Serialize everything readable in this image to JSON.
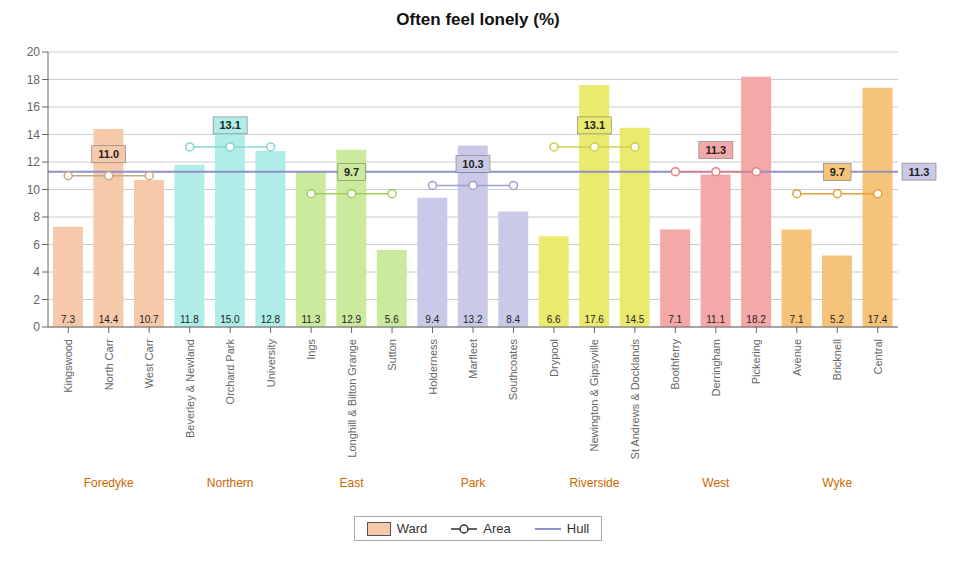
{
  "chart_data": {
    "type": "bar",
    "title": "Often feel lonely (%)",
    "categories": [
      "Kingswood",
      "North Carr",
      "West Carr",
      "Beverley & Newland",
      "Orchard Park",
      "University",
      "Ings",
      "Longhill & Bilton Grange",
      "Sutton",
      "Holderness",
      "Marfleet",
      "Southcoates",
      "Drypool",
      "Newington & Gipsyville",
      "St Andrews & Docklands",
      "Boothferry",
      "Derringham",
      "Pickering",
      "Avenue",
      "Bricknell",
      "Central"
    ],
    "ylim": [
      0,
      20
    ],
    "yticks": [
      0,
      2,
      4,
      6,
      8,
      10,
      12,
      14,
      16,
      18,
      20
    ],
    "grid": true,
    "legend": "bottom",
    "group_label_color": "#cc6600",
    "series": [
      {
        "name": "Ward",
        "type": "bar",
        "data_labels": true,
        "values": [
          7.3,
          14.4,
          10.7,
          11.8,
          15.0,
          12.8,
          11.3,
          12.9,
          5.6,
          9.4,
          13.2,
          8.4,
          6.6,
          17.6,
          14.5,
          7.1,
          11.1,
          18.2,
          7.1,
          5.2,
          17.4
        ],
        "value_labels": [
          "7.3",
          "14.4",
          "10.7",
          "11.8",
          "15.0",
          "12.8",
          "11.3",
          "12.9",
          "5.6",
          "9.4",
          "13.2",
          "8.4",
          "6.6",
          "17.6",
          "14.5",
          "7.1",
          "11.1",
          "18.2",
          "7.1",
          "5.2",
          "17.4"
        ],
        "colors": [
          "#f5c9aa",
          "#f5c9aa",
          "#f5c9aa",
          "#b0ede8",
          "#b0ede8",
          "#b0ede8",
          "#ccea9e",
          "#ccea9e",
          "#ccea9e",
          "#cacae8",
          "#cacae8",
          "#cacae8",
          "#eaea6e",
          "#eaea6e",
          "#eaea6e",
          "#f5a8a8",
          "#f5a8a8",
          "#f5a8a8",
          "#f5c47a",
          "#f5c47a",
          "#f5c47a"
        ]
      },
      {
        "name": "Area",
        "type": "line",
        "marker": "circle",
        "color": "#333333",
        "groups": [
          {
            "name": "Foredyke",
            "categories": [
              "Kingswood",
              "North Carr",
              "West Carr"
            ],
            "value": 11.0,
            "value_label": "11.0",
            "color": "#c8a882",
            "label_color": "#f5c9aa"
          },
          {
            "name": "Northern",
            "categories": [
              "Beverley & Newland",
              "Orchard Park",
              "University"
            ],
            "value": 13.1,
            "value_label": "13.1",
            "color": "#80d8d0",
            "label_color": "#b0ede8"
          },
          {
            "name": "East",
            "categories": [
              "Ings",
              "Longhill & Bilton Grange",
              "Sutton"
            ],
            "value": 9.7,
            "value_label": "9.7",
            "color": "#a0cc60",
            "label_color": "#ccea9e"
          },
          {
            "name": "Park",
            "categories": [
              "Holderness",
              "Marfleet",
              "Southcoates"
            ],
            "value": 10.3,
            "value_label": "10.3",
            "color": "#a0a0cc",
            "label_color": "#cacae8"
          },
          {
            "name": "Riverside",
            "categories": [
              "Drypool",
              "Newington & Gipsyville",
              "St Andrews & Docklands"
            ],
            "value": 13.1,
            "value_label": "13.1",
            "color": "#d0d050",
            "label_color": "#eaea6e"
          },
          {
            "name": "West",
            "categories": [
              "Boothferry",
              "Derringham",
              "Pickering"
            ],
            "value": 11.3,
            "value_label": "11.3",
            "color": "#e08080",
            "label_color": "#f5a8a8"
          },
          {
            "name": "Wyke",
            "categories": [
              "Avenue",
              "Bricknell",
              "Central"
            ],
            "value": 9.7,
            "value_label": "9.7",
            "color": "#e0a040",
            "label_color": "#f5c47a"
          }
        ]
      },
      {
        "name": "Hull",
        "type": "line",
        "value": 11.3,
        "value_label": "11.3",
        "color": "#9090cc",
        "label_color": "#cacae8"
      }
    ]
  }
}
